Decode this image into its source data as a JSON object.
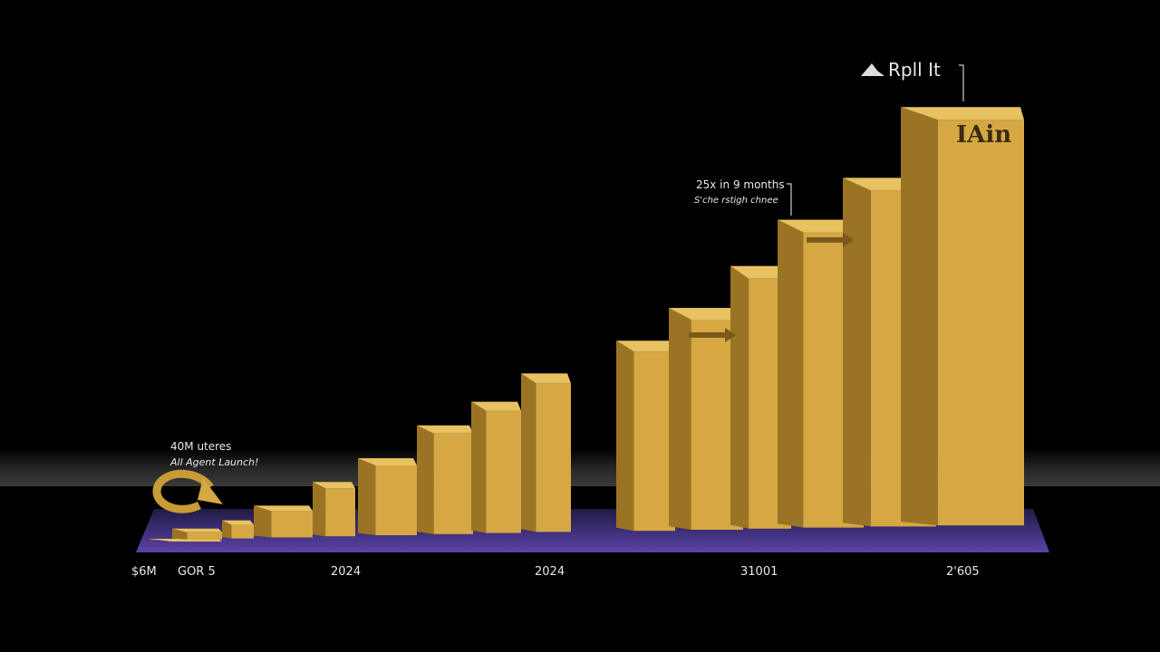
{
  "chart_data": {
    "type": "bar",
    "style": "3d-bars",
    "title": "",
    "xlabel": "",
    "ylabel": "",
    "values_note": "relative bar heights, no y-axis printed",
    "values": [
      2,
      12,
      20,
      35,
      60,
      85,
      120,
      145,
      175,
      210,
      245,
      290,
      340,
      385,
      462
    ],
    "x_tick_labels": [
      "$6M",
      "GOR 5",
      "2024",
      "2024",
      "31001",
      "2'605"
    ],
    "annotations": {
      "left_title": "40M uteres",
      "left_subtitle": "All Agent Launch!",
      "mid_title": "25x in 9 months",
      "mid_subtitle": "S'che rstigh chnee",
      "logo_text": "Rpll It",
      "top_bar_label": "IAin"
    },
    "grid": false,
    "legend": "none",
    "colors": {
      "background": "#000000",
      "bar_front": "#d6a844",
      "bar_side": "#9a7424",
      "bar_top": "#e8c260",
      "floor": "#4a3590",
      "text": "#e8e8e8"
    }
  }
}
